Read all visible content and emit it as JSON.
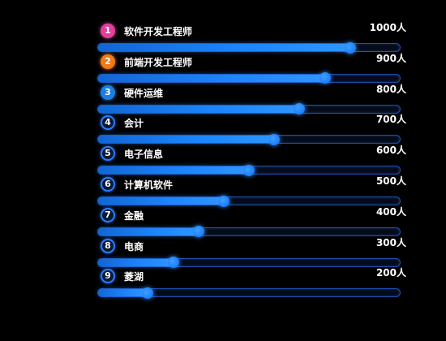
{
  "chart_data": {
    "type": "bar",
    "orientation": "horizontal",
    "unit": "人",
    "categories": [
      "软件开发工程师",
      "前端开发工程师",
      "硬件运维",
      "会计",
      "电子信息",
      "计算机软件",
      "金融",
      "电商",
      "菱湖"
    ],
    "ranks": [
      "1",
      "2",
      "3",
      "4",
      "5",
      "6",
      "7",
      "8",
      "9"
    ],
    "values": [
      1000,
      900,
      800,
      700,
      600,
      500,
      400,
      300,
      200
    ],
    "value_labels": [
      "1000人",
      "900人",
      "800人",
      "700人",
      "600人",
      "500人",
      "400人",
      "300人",
      "200人"
    ],
    "xlim": [
      0,
      1200
    ],
    "grid": false,
    "legend": "none"
  },
  "colors": {
    "background": "#000000",
    "rank_1": "#e0409a",
    "rank_2": "#f07a18",
    "rank_3": "#1a7fe0",
    "rank_other_border": "#2a7bff",
    "bar_fill": "#1d86ff",
    "bar_track_border": "#1e4fae",
    "text": "#ffffff"
  }
}
